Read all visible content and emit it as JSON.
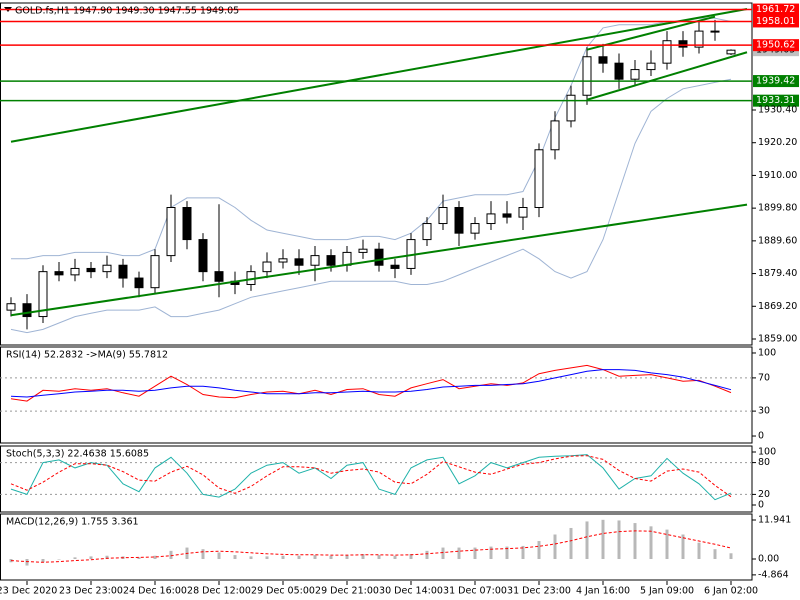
{
  "chart_data": [
    {
      "type": "candlestick",
      "title": "GOLD.fs,H1 1947.90 1949.30 1947.55 1949.05",
      "categories": [
        null,
        "23 Dec 2020",
        null,
        null,
        null,
        "23 Dec 23:00",
        null,
        null,
        null,
        "24 Dec 16:00",
        null,
        null,
        null,
        "28 Dec 12:00",
        null,
        null,
        null,
        "29 Dec 05:00",
        null,
        null,
        null,
        "29 Dec 21:00",
        null,
        null,
        null,
        "30 Dec 14:00",
        null,
        null,
        null,
        "31 Dec 07:00",
        null,
        null,
        null,
        "31 Dec 23:00",
        null,
        null,
        null,
        "4 Jan 16:00",
        null,
        null,
        null,
        "5 Jan 09:00",
        null,
        null,
        null,
        "6 Jan 02:00"
      ],
      "open": [
        1868,
        1870,
        1866,
        1880,
        1879,
        1881,
        1880,
        1882,
        1878,
        1875,
        1885,
        1900,
        1890,
        1880,
        1877,
        1876,
        1880,
        1883,
        1884,
        1882,
        1885,
        1882,
        1886,
        1887,
        1882,
        1881,
        1890,
        1895,
        1900,
        1892,
        1895,
        1898,
        1897,
        1900,
        1918,
        1927,
        1935,
        1947,
        1945,
        1940,
        1943,
        1945,
        1952,
        1950,
        1955,
        1947.9
      ],
      "high": [
        1872,
        1873,
        1882,
        1883,
        1884,
        1883,
        1885,
        1884,
        1880,
        1887,
        1904,
        1902,
        1892,
        1901,
        1880,
        1882,
        1886,
        1887,
        1887,
        1888,
        1887,
        1888,
        1890,
        1889,
        1884,
        1892,
        1897,
        1904,
        1902,
        1897,
        1902,
        1902,
        1903,
        1920,
        1930,
        1938,
        1950,
        1951,
        1948,
        1946,
        1949,
        1955,
        1955,
        1958,
        1958.5,
        1949.3
      ],
      "low": [
        1866,
        1862,
        1864,
        1877,
        1877,
        1878,
        1878,
        1875,
        1872,
        1873,
        1883,
        1887,
        1877,
        1872,
        1873,
        1874,
        1878,
        1881,
        1879,
        1877,
        1880,
        1880,
        1884,
        1880,
        1878,
        1879,
        1888,
        1893,
        1888,
        1890,
        1893,
        1895,
        1893,
        1897,
        1915,
        1925,
        1932,
        1942,
        1937,
        1938,
        1941,
        1943,
        1947,
        1948,
        1952,
        1947.55
      ],
      "close": [
        1870,
        1866,
        1880,
        1879,
        1881,
        1880,
        1882,
        1878,
        1875,
        1885,
        1900,
        1890,
        1880,
        1877,
        1876,
        1880,
        1883,
        1884,
        1882,
        1885,
        1882,
        1886,
        1887,
        1882,
        1881,
        1890,
        1895,
        1900,
        1892,
        1895,
        1898,
        1897,
        1900,
        1918,
        1927,
        1935,
        1947,
        1945,
        1940,
        1943,
        1945,
        1952,
        1950,
        1955,
        1955,
        1949.05
      ],
      "bull_color": "#ffffff",
      "bear_color": "#000000",
      "wick_color": "#000000",
      "bands": {
        "color": "#9fb4d4",
        "upper": [
          1884,
          1884,
          1885,
          1885,
          1886,
          1886,
          1886,
          1885,
          1885,
          1887,
          1900,
          1903,
          1903,
          1903,
          1900,
          1896,
          1893,
          1892,
          1891,
          1890,
          1890,
          1890,
          1891,
          1891,
          1890,
          1892,
          1896,
          1902,
          1903,
          1904,
          1904,
          1904,
          1905,
          1915,
          1928,
          1938,
          1950,
          1956,
          1957,
          1957,
          1957,
          1958,
          1958,
          1959,
          1959,
          1958
        ],
        "lower": [
          1862,
          1861,
          1862,
          1864,
          1866,
          1867,
          1868,
          1868,
          1868,
          1869,
          1866,
          1866,
          1867,
          1868,
          1870,
          1872,
          1873,
          1874,
          1875,
          1876,
          1877,
          1877,
          1877,
          1877,
          1877,
          1876,
          1876,
          1877,
          1879,
          1881,
          1883,
          1885,
          1887,
          1884,
          1880,
          1878,
          1880,
          1890,
          1905,
          1920,
          1930,
          1934,
          1937,
          1938,
          1939,
          1940
        ]
      },
      "trendlines": [
        {
          "color": "#008000",
          "from": [
            0,
            1866.4
          ],
          "to": [
            46,
            1900.9
          ]
        },
        {
          "color": "#008000",
          "from": [
            0,
            1920.5
          ],
          "to": [
            46,
            1961.9
          ]
        },
        {
          "color": "#008000",
          "from": [
            36,
            1933.6
          ],
          "to": [
            46,
            1948.4
          ]
        },
        {
          "color": "#008000",
          "from": [
            36,
            1949.2
          ],
          "to": [
            44,
            1959.5
          ]
        }
      ],
      "levels": [
        {
          "value": 1961.72,
          "color": "#ff0000"
        },
        {
          "value": 1958.01,
          "color": "#ff0000"
        },
        {
          "value": 1950.62,
          "color": "#ff0000"
        },
        {
          "value": 1939.42,
          "color": "#008000"
        },
        {
          "value": 1933.31,
          "color": "#008000"
        }
      ],
      "last_price": 1949.05,
      "ylim": [
        1857.13,
        1963.76
      ],
      "yticks": [
        {
          "value": 1859,
          "label": "1859.00"
        },
        {
          "value": 1869.2,
          "label": "1869.20"
        },
        {
          "value": 1879.4,
          "label": "1879.40"
        },
        {
          "value": 1889.6,
          "label": "1889.60"
        },
        {
          "value": 1899.8,
          "label": "1899.80"
        },
        {
          "value": 1910,
          "label": "1910.00"
        },
        {
          "value": 1920.2,
          "label": "1920.20"
        },
        {
          "value": 1930.4,
          "label": "1930.40"
        }
      ]
    },
    {
      "type": "line",
      "title": "RSI(14) 52.2832 ->MA(9) 55.7812",
      "series": [
        {
          "color": "#ff0000",
          "values": [
            45,
            42,
            55,
            54,
            57,
            55,
            57,
            52,
            48,
            60,
            72,
            62,
            50,
            47,
            46,
            50,
            53,
            54,
            51,
            55,
            50,
            56,
            57,
            50,
            48,
            58,
            63,
            68,
            57,
            60,
            63,
            61,
            64,
            75,
            79,
            82,
            85,
            80,
            72,
            73,
            74,
            70,
            66,
            67,
            60,
            52.2832
          ]
        },
        {
          "color": "#0000ff",
          "values": [
            48,
            47,
            49,
            51,
            53,
            54,
            55,
            55,
            54,
            55,
            58,
            60,
            60,
            58,
            55,
            53,
            51,
            51,
            51,
            52,
            52,
            53,
            54,
            53,
            53,
            54,
            56,
            59,
            60,
            61,
            61,
            62,
            63,
            66,
            70,
            74,
            78,
            80,
            80,
            79,
            76,
            74,
            71,
            66,
            61,
            55.7812
          ]
        }
      ],
      "levels": [
        70,
        30
      ],
      "ylim": [
        -8.4,
        107.2
      ],
      "yticks": [
        100,
        70,
        30,
        0
      ]
    },
    {
      "type": "line",
      "title": "Stoch(5,3,3) 22.4638 15.6085",
      "series": [
        {
          "color": "#20b2aa",
          "values": [
            30,
            20,
            80,
            85,
            70,
            80,
            75,
            40,
            25,
            70,
            90,
            60,
            20,
            15,
            30,
            60,
            75,
            80,
            60,
            70,
            50,
            75,
            80,
            30,
            20,
            70,
            85,
            90,
            40,
            55,
            80,
            70,
            80,
            90,
            92,
            93,
            95,
            70,
            30,
            50,
            55,
            88,
            60,
            40,
            10,
            22.4638
          ]
        },
        {
          "color": "#ff0000",
          "dashed": true,
          "values": [
            40,
            28,
            43,
            62,
            78,
            78,
            75,
            63,
            47,
            45,
            62,
            73,
            57,
            32,
            22,
            35,
            55,
            72,
            72,
            70,
            60,
            65,
            68,
            62,
            43,
            40,
            58,
            82,
            72,
            62,
            58,
            68,
            77,
            80,
            87,
            92,
            93,
            86,
            65,
            50,
            45,
            64,
            68,
            62,
            37,
            15.6085
          ]
        }
      ],
      "levels": [
        80,
        20
      ],
      "ylim": [
        -13.2,
        111.3
      ],
      "yticks": [
        100,
        80,
        20,
        0
      ]
    },
    {
      "type": "bar",
      "title": "MACD(12,26,9) 1.755 3.361",
      "color": "#b8b8b8",
      "values": [
        -1,
        -2,
        -1,
        0,
        0.5,
        0.8,
        1,
        0.8,
        0.5,
        1,
        2.5,
        3.5,
        3,
        2,
        1.2,
        0.8,
        0.8,
        1,
        1,
        1.2,
        1,
        1.2,
        1.5,
        1.2,
        1,
        1.5,
        2.5,
        3.5,
        3.5,
        3.5,
        3.8,
        3.8,
        4,
        5.5,
        7.5,
        9.5,
        11.5,
        12,
        11.8,
        11,
        10,
        9,
        7.5,
        5,
        3,
        1.755
      ],
      "signal": {
        "color": "#ff0000",
        "dashed": true,
        "values": [
          -0.5,
          -0.8,
          -1,
          -0.8,
          -0.5,
          -0.2,
          0.2,
          0.4,
          0.5,
          0.6,
          1,
          1.7,
          2.2,
          2.4,
          2.2,
          1.9,
          1.6,
          1.4,
          1.3,
          1.3,
          1.2,
          1.2,
          1.3,
          1.3,
          1.2,
          1.3,
          1.6,
          2,
          2.4,
          2.7,
          3,
          3.2,
          3.4,
          3.9,
          4.6,
          5.6,
          6.8,
          7.8,
          8.4,
          8.6,
          8.5,
          7.5,
          6.5,
          5.5,
          4.5,
          3.361
        ]
      },
      "ylim": [
        -6.43,
        13.78
      ],
      "yticks": [
        11.941,
        {
          "value": 0,
          "label": "0.00"
        },
        -4.864
      ]
    }
  ]
}
